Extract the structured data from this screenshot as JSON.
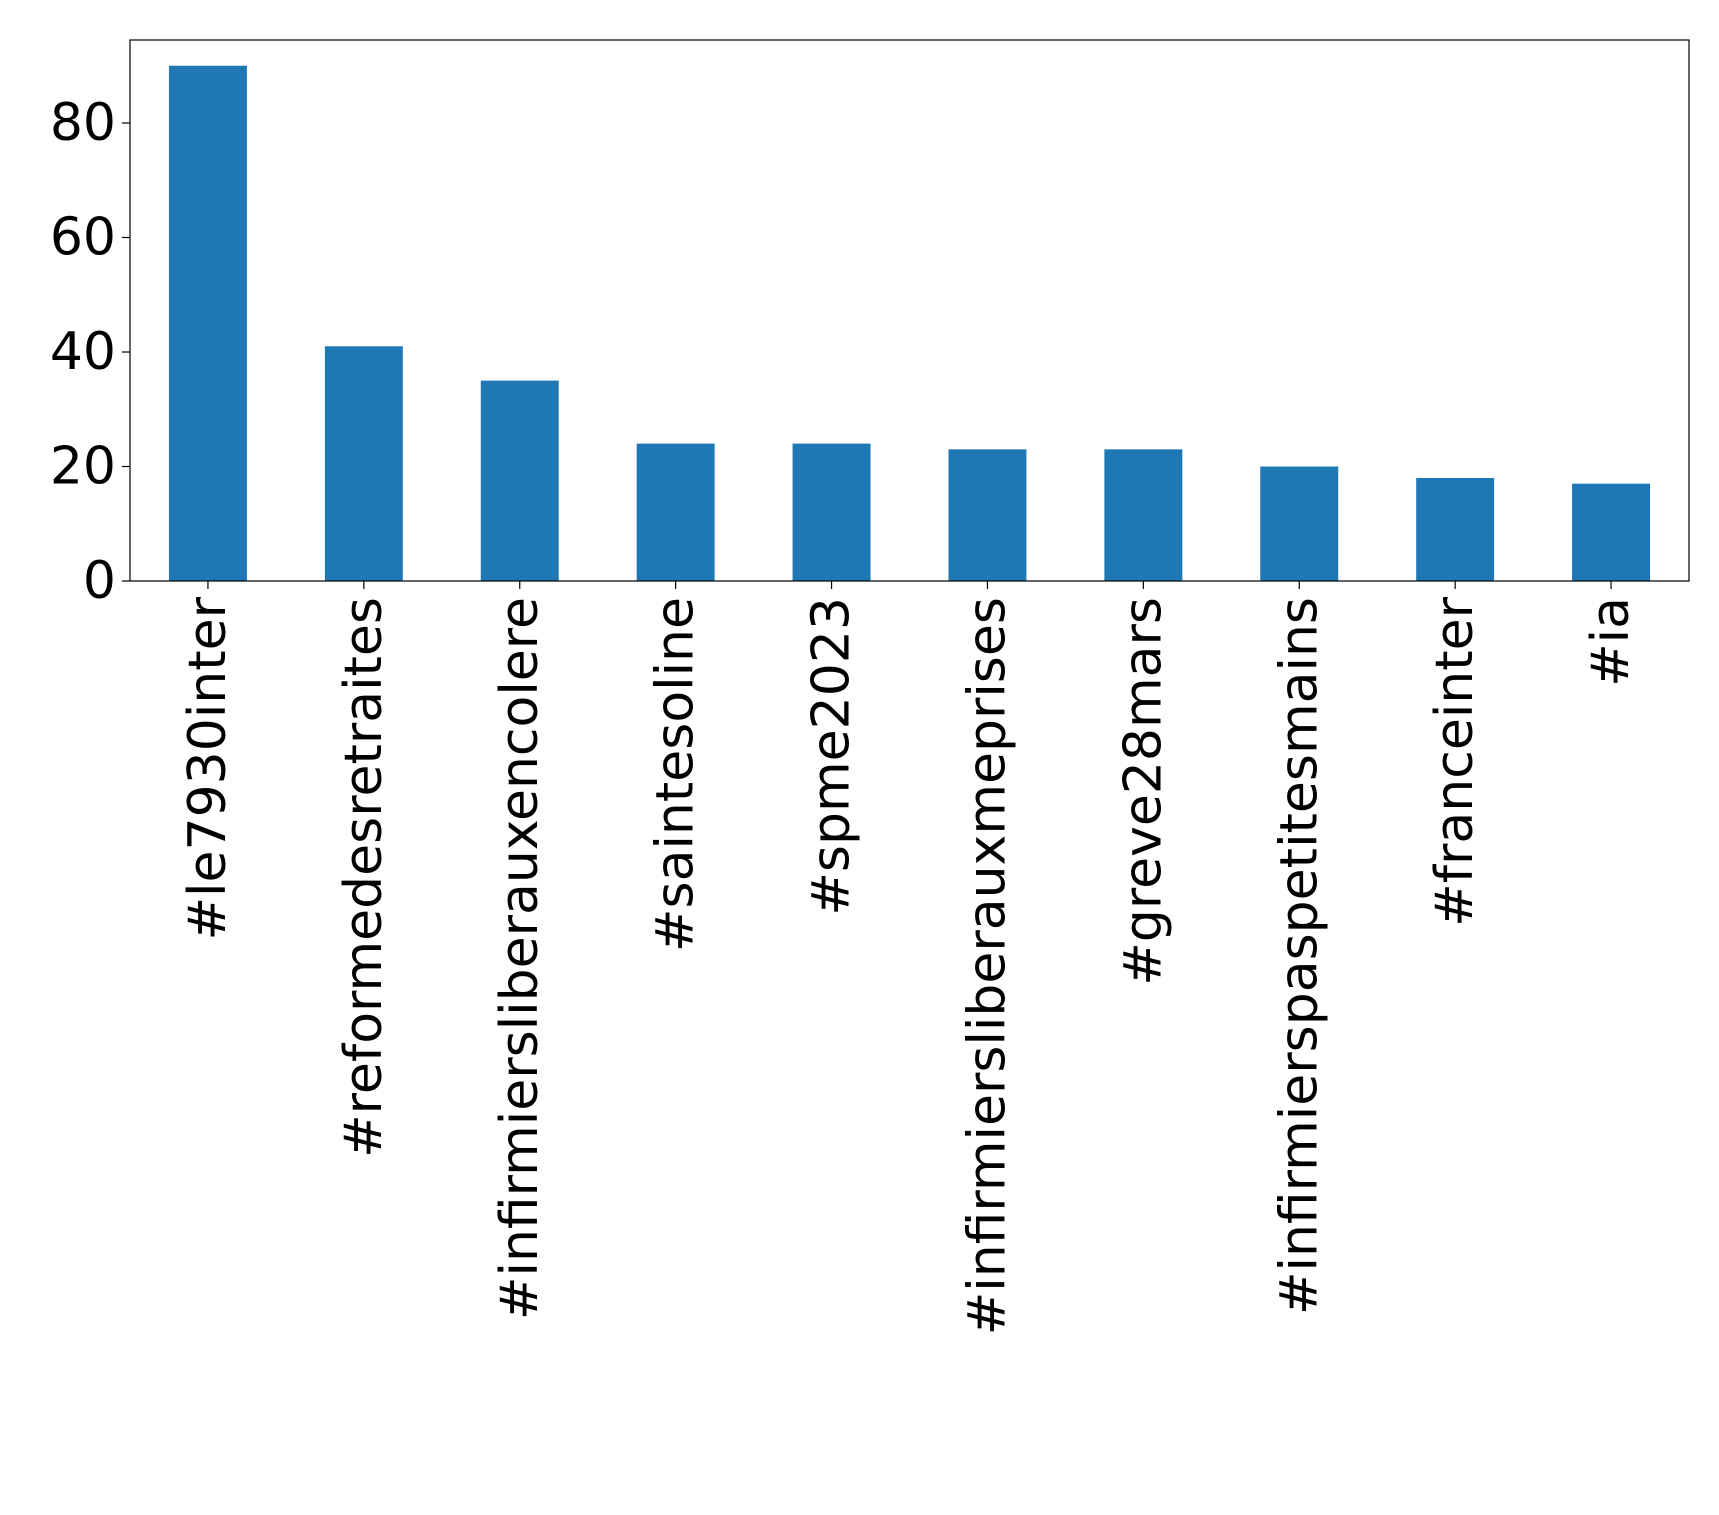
{
  "chart_data": {
    "type": "bar",
    "categories": [
      "#le7930inter",
      "#reformedesretraites",
      "#infirmiersliberauxencolere",
      "#saintesoline",
      "#spme2023",
      "#infirmiersliberauxmeprises",
      "#greve28mars",
      "#infirmierspaspetitesmains",
      "#franceinter",
      "#ia"
    ],
    "values": [
      90,
      41,
      35,
      24,
      24,
      23,
      23,
      20,
      18,
      17
    ],
    "title": "",
    "xlabel": "",
    "ylabel": "",
    "ylim": [
      0,
      94.5
    ],
    "yticks": [
      0,
      20,
      40,
      60,
      80
    ],
    "bar_color": "#1f77b4",
    "grid": false,
    "legend": "none"
  }
}
